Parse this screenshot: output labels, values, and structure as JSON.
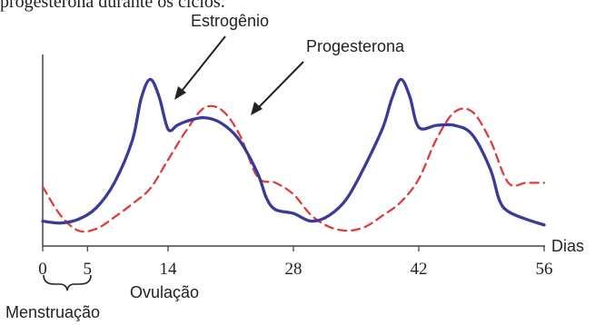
{
  "header_fragment": "progesterona durante os ciclos.",
  "chart_data": {
    "type": "line",
    "xlabel": "Dias",
    "ylabel": "",
    "xlim": [
      0,
      56
    ],
    "x_ticks": [
      "0",
      "5",
      "14",
      "28",
      "42",
      "56"
    ],
    "x_tick_values": [
      0,
      5,
      14,
      28,
      42,
      56
    ],
    "grid": false,
    "series": [
      {
        "name": "Estrogênio",
        "color": "#3a3a9a",
        "style": "solid",
        "x": [
          0,
          2,
          4,
          6,
          8,
          10,
          11,
          12,
          13,
          14,
          15,
          16,
          18,
          20,
          22,
          24,
          25,
          26,
          28,
          30,
          32,
          34,
          36,
          38,
          39,
          40,
          41,
          42,
          44,
          46,
          48,
          50,
          51,
          52,
          54,
          56
        ],
        "y": [
          1.3,
          1.2,
          1.4,
          2.0,
          3.3,
          5.5,
          7.7,
          8.7,
          7.8,
          6.1,
          6.3,
          6.5,
          6.7,
          6.4,
          5.5,
          3.8,
          2.5,
          1.9,
          1.7,
          1.3,
          1.6,
          2.5,
          4.2,
          6.2,
          7.7,
          8.7,
          7.8,
          6.2,
          6.3,
          6.3,
          5.8,
          4.0,
          2.4,
          1.8,
          1.4,
          1.1
        ]
      },
      {
        "name": "Progesterona",
        "color": "#e03c3c",
        "style": "dashed",
        "x": [
          0,
          2,
          4,
          6,
          8,
          10,
          12,
          14,
          16,
          18,
          20,
          22,
          24,
          26,
          28,
          30,
          32,
          34,
          36,
          38,
          40,
          42,
          44,
          46,
          48,
          50,
          52,
          54,
          56
        ],
        "y": [
          3.1,
          1.6,
          0.8,
          0.9,
          1.5,
          2.2,
          3.0,
          4.5,
          6.0,
          7.2,
          7.1,
          5.8,
          3.6,
          3.3,
          2.7,
          1.6,
          1.0,
          0.8,
          1.0,
          1.6,
          2.3,
          3.5,
          5.6,
          7.0,
          7.0,
          5.5,
          3.3,
          3.3,
          3.3
        ]
      }
    ],
    "annotations": [
      {
        "text": "Estrogênio"
      },
      {
        "text": "Progesterona"
      },
      {
        "text": "Menstruação"
      },
      {
        "text": "Ovulação"
      }
    ]
  }
}
